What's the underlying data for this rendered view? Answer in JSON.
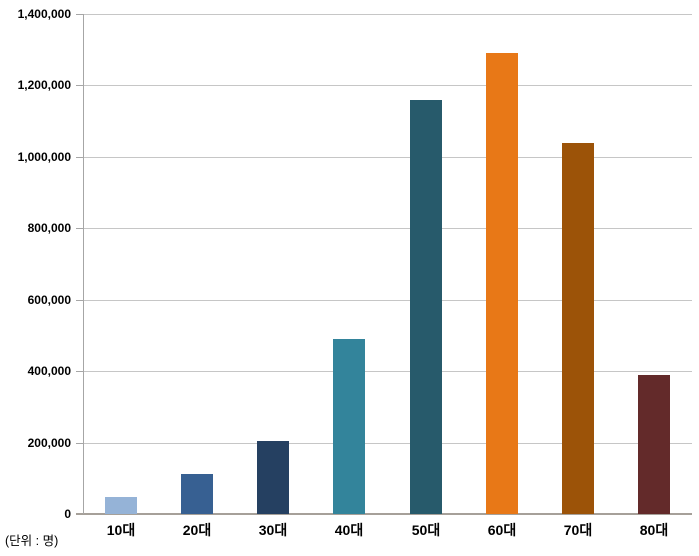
{
  "chart_data": {
    "type": "bar",
    "title": "",
    "unit_label": "(단위 : 명)",
    "categories": [
      "10대",
      "20대",
      "30대",
      "40대",
      "50대",
      "60대",
      "70대",
      "80대"
    ],
    "values": [
      48000,
      112000,
      205000,
      490000,
      1160000,
      1290000,
      1040000,
      388000
    ],
    "bar_colors": [
      "#95B3D7",
      "#376092",
      "#254061",
      "#33849B",
      "#275A6B",
      "#E87817",
      "#9C5308",
      "#632A2A"
    ],
    "xlabel": "",
    "ylabel": "",
    "ylim": [
      0,
      1400000
    ],
    "ytick_step": 200000,
    "ytick_labels": [
      "0",
      "200,000",
      "400,000",
      "600,000",
      "800,000",
      "1,000,000",
      "1,200,000",
      "1,400,000"
    ],
    "grid": true,
    "legend": "none",
    "colors": {
      "gridline": "#C6C6C6",
      "axis": "#A6A6A6",
      "baseline": "#A6A099",
      "text": "#000000",
      "background": "#FFFFFF"
    }
  }
}
